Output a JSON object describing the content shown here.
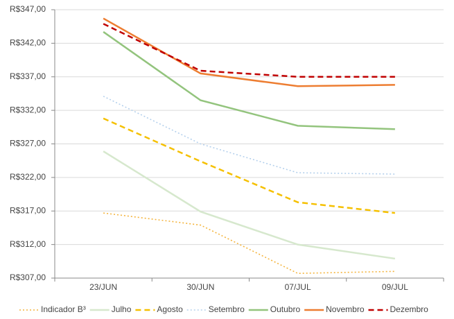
{
  "chart_data": {
    "type": "line",
    "categories": [
      "23/JUN",
      "30/JUN",
      "07/JUL",
      "09/JUL"
    ],
    "ylim": [
      307,
      347
    ],
    "yticks": [
      {
        "value": 307,
        "label": "R$307,00"
      },
      {
        "value": 312,
        "label": "R$312,00"
      },
      {
        "value": 317,
        "label": "R$317,00"
      },
      {
        "value": 322,
        "label": "R$322,00"
      },
      {
        "value": 327,
        "label": "R$327,00"
      },
      {
        "value": 332,
        "label": "R$332,00"
      },
      {
        "value": 337,
        "label": "R$337,00"
      },
      {
        "value": 342,
        "label": "R$342,00"
      },
      {
        "value": 347,
        "label": "R$347,00"
      }
    ],
    "grid": true,
    "legend": "bottom",
    "series": [
      {
        "name": "Indicador B³",
        "color": "#f4b43c",
        "style": "dotted",
        "values": [
          316.7,
          314.9,
          307.7,
          308.0
        ]
      },
      {
        "name": "Julho",
        "color": "#d6e8cd",
        "style": "solid",
        "values": [
          325.9,
          316.9,
          312.0,
          309.9
        ]
      },
      {
        "name": "Agosto",
        "color": "#f5c000",
        "style": "dashed",
        "values": [
          330.8,
          324.4,
          318.3,
          316.7
        ]
      },
      {
        "name": "Setembro",
        "color": "#b4d0ec",
        "style": "dotted",
        "values": [
          334.1,
          327.0,
          322.7,
          322.5
        ]
      },
      {
        "name": "Outubro",
        "color": "#93c47d",
        "style": "solid",
        "values": [
          343.7,
          333.5,
          329.7,
          329.2
        ]
      },
      {
        "name": "Novembro",
        "color": "#ed7d31",
        "style": "solid",
        "values": [
          345.7,
          337.5,
          335.6,
          335.8
        ]
      },
      {
        "name": "Dezembro",
        "color": "#c00000",
        "style": "dashed",
        "values": [
          344.9,
          337.9,
          337.0,
          337.0
        ]
      }
    ]
  }
}
